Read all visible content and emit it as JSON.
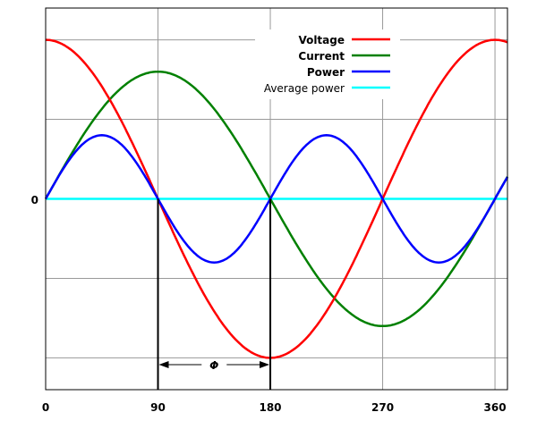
{
  "chart_data": {
    "type": "line",
    "title": "",
    "xlabel": "",
    "ylabel": "",
    "xlim": [
      0,
      370
    ],
    "ylim": [
      -1.2,
      1.2
    ],
    "grid": true,
    "x_ticks": [
      0,
      90,
      180,
      270,
      360
    ],
    "x_tick_labels": [
      "0",
      "90",
      "180",
      "270",
      "360"
    ],
    "y_ticks": [
      -1,
      -0.5,
      0,
      0.5,
      1
    ],
    "y_tick_labels": [
      "0"
    ],
    "legend_position": "top-right",
    "series": [
      {
        "name": "Voltage",
        "formula": "cos(x)",
        "amplitude": 1.0,
        "color": "#ff0000",
        "bold": true
      },
      {
        "name": "Current",
        "formula": "sin(x)",
        "amplitude": 0.8,
        "color": "#008000",
        "bold": true
      },
      {
        "name": "Power",
        "formula": "0.4*sin(2x)",
        "amplitude": 0.4,
        "color": "#0000ff",
        "bold": true
      },
      {
        "name": "Average power",
        "formula": "0",
        "amplitude": 0,
        "color": "#00ffff",
        "bold": false
      }
    ],
    "annotation": {
      "label": "Φ",
      "from": 90,
      "to": 180
    }
  }
}
